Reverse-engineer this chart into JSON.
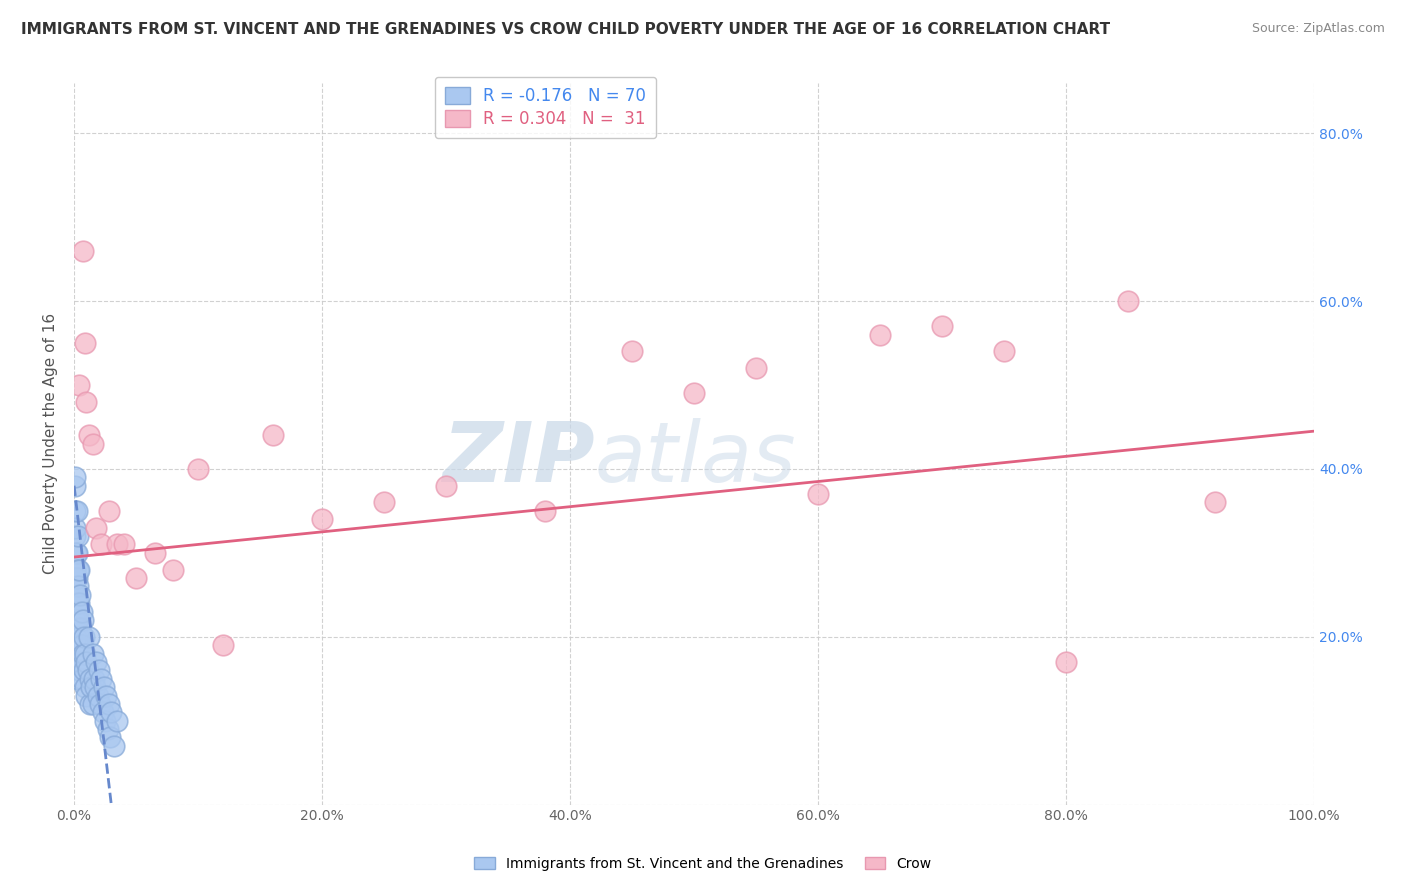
{
  "title": "IMMIGRANTS FROM ST. VINCENT AND THE GRENADINES VS CROW CHILD POVERTY UNDER THE AGE OF 16 CORRELATION CHART",
  "source": "Source: ZipAtlas.com",
  "ylabel": "Child Poverty Under the Age of 16",
  "xlim": [
    0,
    1.0
  ],
  "ylim": [
    0,
    0.86
  ],
  "xticks": [
    0.0,
    0.2,
    0.4,
    0.6,
    0.8,
    1.0
  ],
  "yticks": [
    0.0,
    0.2,
    0.4,
    0.6,
    0.8
  ],
  "blue_R": "-0.176",
  "blue_N": "70",
  "pink_R": "0.304",
  "pink_N": "31",
  "legend_label_blue": "Immigrants from St. Vincent and the Grenadines",
  "legend_label_pink": "Crow",
  "blue_scatter_color": "#aac8f0",
  "blue_edge_color": "#88aad8",
  "pink_scatter_color": "#f5b8c8",
  "pink_edge_color": "#e898b0",
  "blue_line_color": "#6688cc",
  "pink_line_color": "#e06080",
  "watermark_zip": "ZIP",
  "watermark_atlas": "atlas",
  "watermark_color": "#c8d8e8",
  "background_color": "#ffffff",
  "grid_color": "#cccccc",
  "r_blue_color": "#4488ee",
  "r_pink_color": "#e06080",
  "n_blue_color": "#4488ee",
  "n_pink_color": "#e06080",
  "blue_x": [
    0.0005,
    0.0005,
    0.0005,
    0.0008,
    0.001,
    0.001,
    0.001,
    0.001,
    0.001,
    0.0012,
    0.0015,
    0.0015,
    0.0015,
    0.002,
    0.002,
    0.002,
    0.002,
    0.002,
    0.0022,
    0.0025,
    0.003,
    0.003,
    0.003,
    0.003,
    0.003,
    0.0035,
    0.0035,
    0.004,
    0.004,
    0.004,
    0.004,
    0.0045,
    0.005,
    0.005,
    0.005,
    0.006,
    0.006,
    0.006,
    0.007,
    0.007,
    0.008,
    0.008,
    0.009,
    0.009,
    0.01,
    0.01,
    0.011,
    0.012,
    0.013,
    0.013,
    0.014,
    0.015,
    0.015,
    0.016,
    0.017,
    0.018,
    0.019,
    0.02,
    0.021,
    0.022,
    0.023,
    0.024,
    0.025,
    0.026,
    0.027,
    0.028,
    0.029,
    0.03,
    0.032,
    0.035
  ],
  "blue_y": [
    0.38,
    0.32,
    0.28,
    0.35,
    0.39,
    0.33,
    0.28,
    0.25,
    0.22,
    0.3,
    0.27,
    0.24,
    0.2,
    0.35,
    0.3,
    0.25,
    0.22,
    0.18,
    0.27,
    0.24,
    0.32,
    0.28,
    0.23,
    0.19,
    0.15,
    0.26,
    0.22,
    0.28,
    0.24,
    0.2,
    0.16,
    0.19,
    0.25,
    0.21,
    0.17,
    0.23,
    0.19,
    0.15,
    0.22,
    0.18,
    0.2,
    0.16,
    0.18,
    0.14,
    0.17,
    0.13,
    0.16,
    0.2,
    0.15,
    0.12,
    0.14,
    0.18,
    0.12,
    0.15,
    0.14,
    0.17,
    0.13,
    0.16,
    0.12,
    0.15,
    0.11,
    0.14,
    0.1,
    0.13,
    0.09,
    0.12,
    0.08,
    0.11,
    0.07,
    0.1
  ],
  "pink_x": [
    0.004,
    0.007,
    0.009,
    0.01,
    0.012,
    0.015,
    0.018,
    0.022,
    0.028,
    0.035,
    0.04,
    0.05,
    0.065,
    0.08,
    0.1,
    0.12,
    0.16,
    0.2,
    0.25,
    0.3,
    0.38,
    0.45,
    0.5,
    0.55,
    0.6,
    0.65,
    0.7,
    0.75,
    0.8,
    0.85,
    0.92
  ],
  "pink_y": [
    0.5,
    0.66,
    0.55,
    0.48,
    0.44,
    0.43,
    0.33,
    0.31,
    0.35,
    0.31,
    0.31,
    0.27,
    0.3,
    0.28,
    0.4,
    0.19,
    0.44,
    0.34,
    0.36,
    0.38,
    0.35,
    0.54,
    0.49,
    0.52,
    0.37,
    0.56,
    0.57,
    0.54,
    0.17,
    0.6,
    0.36
  ],
  "pink_trend_x0": 0.0,
  "pink_trend_x1": 1.0,
  "pink_trend_y0": 0.295,
  "pink_trend_y1": 0.445,
  "blue_trend_x0": 0.0,
  "blue_trend_x1": 0.03,
  "blue_trend_y0": 0.38,
  "blue_trend_y1": 0.0
}
